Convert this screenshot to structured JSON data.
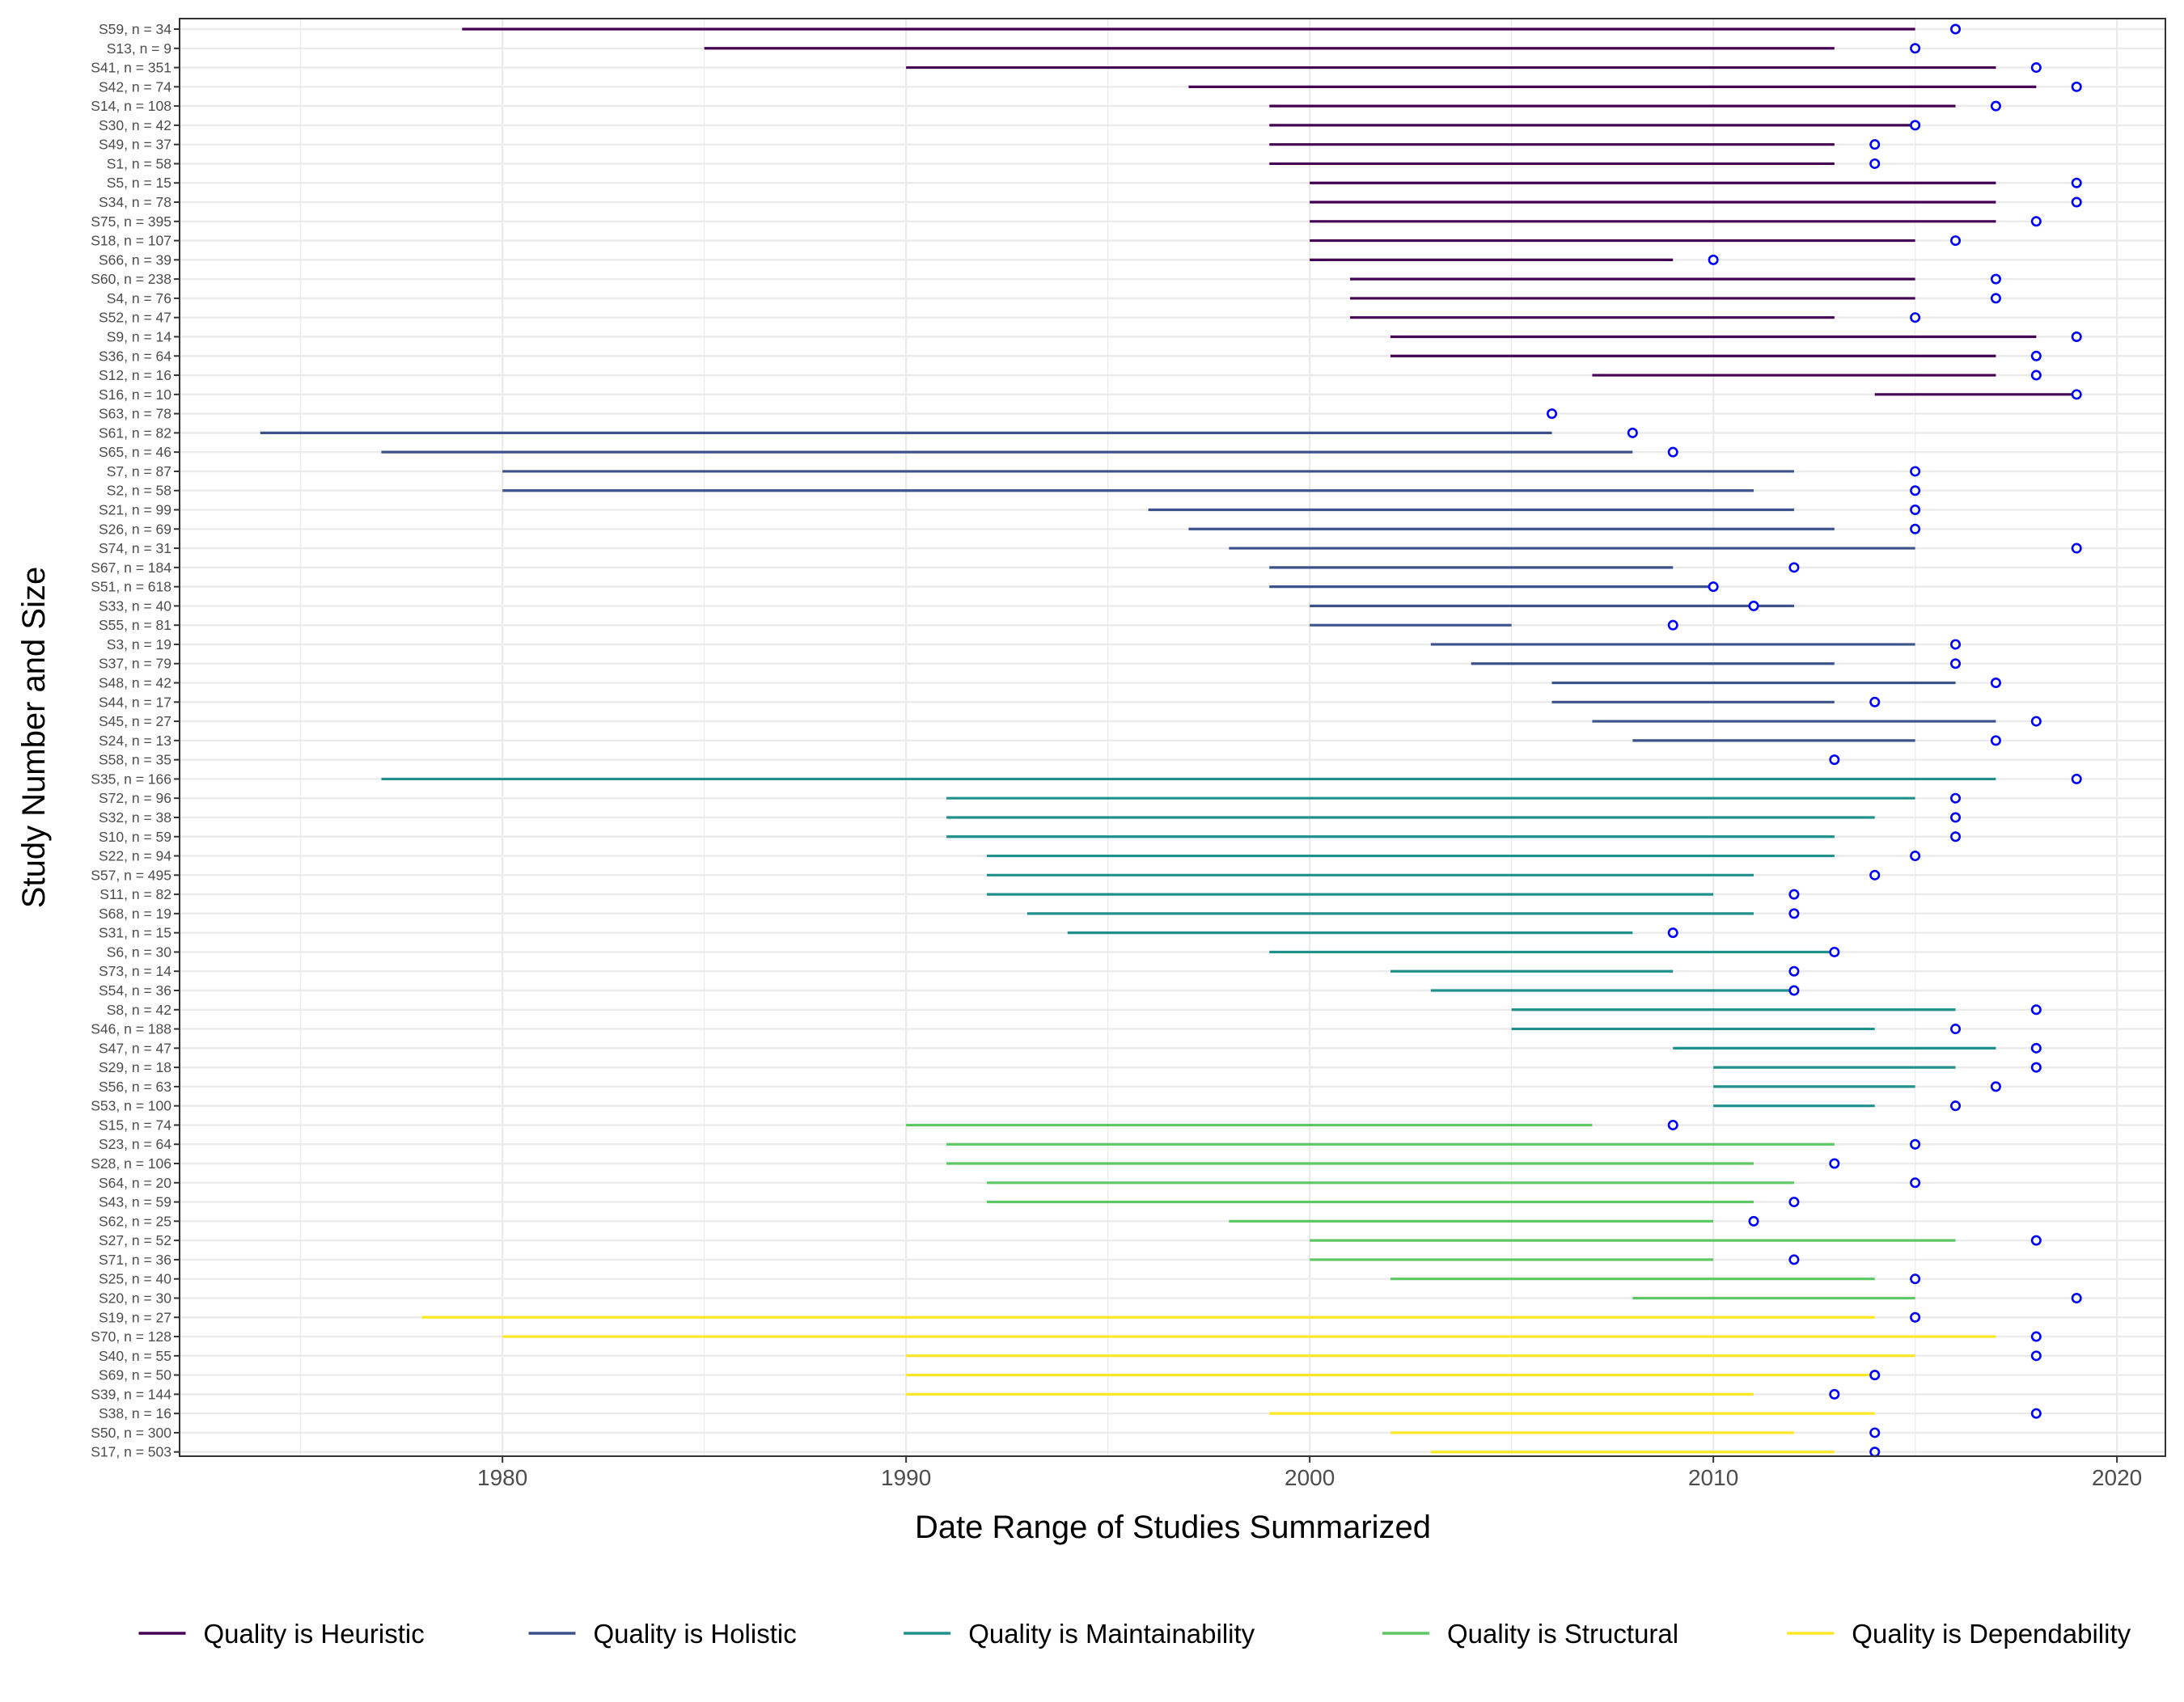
{
  "chart_data": {
    "type": "range-dot",
    "xlabel": "Date Range of Studies Summarized",
    "ylabel": "Study Number and Size",
    "xlim": [
      1972,
      2021.2
    ],
    "xticks": [
      1980,
      1990,
      2000,
      2010,
      2020
    ],
    "grid": true,
    "legend_position": "bottom",
    "point_color": "#0000ff",
    "groups": [
      {
        "name": "Quality is Heuristic",
        "color": "#440154"
      },
      {
        "name": "Quality is Holistic",
        "color": "#3b528b"
      },
      {
        "name": "Quality is Maintainability",
        "color": "#21908c"
      },
      {
        "name": "Quality is Structural",
        "color": "#5dc863"
      },
      {
        "name": "Quality is Dependability",
        "color": "#fde725"
      }
    ],
    "studies": [
      {
        "label": "S59, n = 34",
        "group": 0,
        "start": 1979,
        "end": 2015,
        "published": 2016
      },
      {
        "label": "S13, n = 9",
        "group": 0,
        "start": 1985,
        "end": 2013,
        "published": 2015
      },
      {
        "label": "S41, n = 351",
        "group": 0,
        "start": 1990,
        "end": 2017,
        "published": 2018
      },
      {
        "label": "S42, n = 74",
        "group": 0,
        "start": 1997,
        "end": 2018,
        "published": 2019
      },
      {
        "label": "S14, n = 108",
        "group": 0,
        "start": 1999,
        "end": 2016,
        "published": 2017
      },
      {
        "label": "S30, n = 42",
        "group": 0,
        "start": 1999,
        "end": 2015,
        "published": 2015
      },
      {
        "label": "S49, n = 37",
        "group": 0,
        "start": 1999,
        "end": 2013,
        "published": 2014
      },
      {
        "label": "S1, n = 58",
        "group": 0,
        "start": 1999,
        "end": 2013,
        "published": 2014
      },
      {
        "label": "S5, n = 15",
        "group": 0,
        "start": 2000,
        "end": 2017,
        "published": 2019
      },
      {
        "label": "S34, n = 78",
        "group": 0,
        "start": 2000,
        "end": 2017,
        "published": 2019
      },
      {
        "label": "S75, n = 395",
        "group": 0,
        "start": 2000,
        "end": 2017,
        "published": 2018
      },
      {
        "label": "S18, n = 107",
        "group": 0,
        "start": 2000,
        "end": 2015,
        "published": 2016
      },
      {
        "label": "S66, n = 39",
        "group": 0,
        "start": 2000,
        "end": 2009,
        "published": 2010
      },
      {
        "label": "S60, n = 238",
        "group": 0,
        "start": 2001,
        "end": 2015,
        "published": 2017
      },
      {
        "label": "S4, n = 76",
        "group": 0,
        "start": 2001,
        "end": 2015,
        "published": 2017
      },
      {
        "label": "S52, n = 47",
        "group": 0,
        "start": 2001,
        "end": 2013,
        "published": 2015
      },
      {
        "label": "S9, n = 14",
        "group": 0,
        "start": 2002,
        "end": 2018,
        "published": 2019
      },
      {
        "label": "S36, n = 64",
        "group": 0,
        "start": 2002,
        "end": 2017,
        "published": 2018
      },
      {
        "label": "S12, n = 16",
        "group": 0,
        "start": 2007,
        "end": 2017,
        "published": 2018
      },
      {
        "label": "S16, n = 10",
        "group": 0,
        "start": 2014,
        "end": 2019,
        "published": 2019
      },
      {
        "label": "S63, n = 78",
        "group": 1,
        "start": 2006,
        "end": 2006,
        "published": 2006
      },
      {
        "label": "S61, n = 82",
        "group": 1,
        "start": 1974,
        "end": 2006,
        "published": 2008
      },
      {
        "label": "S65, n = 46",
        "group": 1,
        "start": 1977,
        "end": 2008,
        "published": 2009
      },
      {
        "label": "S7, n = 87",
        "group": 1,
        "start": 1980,
        "end": 2012,
        "published": 2015
      },
      {
        "label": "S2, n = 58",
        "group": 1,
        "start": 1980,
        "end": 2011,
        "published": 2015
      },
      {
        "label": "S21, n = 99",
        "group": 1,
        "start": 1996,
        "end": 2012,
        "published": 2015
      },
      {
        "label": "S26, n = 69",
        "group": 1,
        "start": 1997,
        "end": 2013,
        "published": 2015
      },
      {
        "label": "S74, n = 31",
        "group": 1,
        "start": 1998,
        "end": 2015,
        "published": 2019
      },
      {
        "label": "S67, n = 184",
        "group": 1,
        "start": 1999,
        "end": 2009,
        "published": 2012
      },
      {
        "label": "S51, n = 618",
        "group": 1,
        "start": 1999,
        "end": 2010,
        "published": 2010
      },
      {
        "label": "S33, n = 40",
        "group": 1,
        "start": 2000,
        "end": 2012,
        "published": 2011
      },
      {
        "label": "S55, n = 81",
        "group": 1,
        "start": 2000,
        "end": 2005,
        "published": 2009
      },
      {
        "label": "S3, n = 19",
        "group": 1,
        "start": 2003,
        "end": 2015,
        "published": 2016
      },
      {
        "label": "S37, n = 79",
        "group": 1,
        "start": 2004,
        "end": 2013,
        "published": 2016
      },
      {
        "label": "S48, n = 42",
        "group": 1,
        "start": 2006,
        "end": 2016,
        "published": 2017
      },
      {
        "label": "S44, n = 17",
        "group": 1,
        "start": 2006,
        "end": 2013,
        "published": 2014
      },
      {
        "label": "S45, n = 27",
        "group": 1,
        "start": 2007,
        "end": 2017,
        "published": 2018
      },
      {
        "label": "S24, n = 13",
        "group": 1,
        "start": 2008,
        "end": 2015,
        "published": 2017
      },
      {
        "label": "S58, n = 35",
        "group": 1,
        "start": 2013,
        "end": 2013,
        "published": 2013
      },
      {
        "label": "S35, n = 166",
        "group": 2,
        "start": 1977,
        "end": 2017,
        "published": 2019
      },
      {
        "label": "S72, n = 96",
        "group": 2,
        "start": 1991,
        "end": 2015,
        "published": 2016
      },
      {
        "label": "S32, n = 38",
        "group": 2,
        "start": 1991,
        "end": 2014,
        "published": 2016
      },
      {
        "label": "S10, n = 59",
        "group": 2,
        "start": 1991,
        "end": 2013,
        "published": 2016
      },
      {
        "label": "S22, n = 94",
        "group": 2,
        "start": 1992,
        "end": 2013,
        "published": 2015
      },
      {
        "label": "S57, n = 495",
        "group": 2,
        "start": 1992,
        "end": 2011,
        "published": 2014
      },
      {
        "label": "S11, n = 82",
        "group": 2,
        "start": 1992,
        "end": 2010,
        "published": 2012
      },
      {
        "label": "S68, n = 19",
        "group": 2,
        "start": 1993,
        "end": 2011,
        "published": 2012
      },
      {
        "label": "S31, n = 15",
        "group": 2,
        "start": 1994,
        "end": 2008,
        "published": 2009
      },
      {
        "label": "S6, n = 30",
        "group": 2,
        "start": 1999,
        "end": 2013,
        "published": 2013
      },
      {
        "label": "S73, n = 14",
        "group": 2,
        "start": 2002,
        "end": 2009,
        "published": 2012
      },
      {
        "label": "S54, n = 36",
        "group": 2,
        "start": 2003,
        "end": 2012,
        "published": 2012
      },
      {
        "label": "S8, n = 42",
        "group": 2,
        "start": 2005,
        "end": 2016,
        "published": 2018
      },
      {
        "label": "S46, n = 188",
        "group": 2,
        "start": 2005,
        "end": 2014,
        "published": 2016
      },
      {
        "label": "S47, n = 47",
        "group": 2,
        "start": 2009,
        "end": 2017,
        "published": 2018
      },
      {
        "label": "S29, n = 18",
        "group": 2,
        "start": 2010,
        "end": 2016,
        "published": 2018
      },
      {
        "label": "S56, n = 63",
        "group": 2,
        "start": 2010,
        "end": 2015,
        "published": 2017
      },
      {
        "label": "S53, n = 100",
        "group": 2,
        "start": 2010,
        "end": 2014,
        "published": 2016
      },
      {
        "label": "S15, n = 74",
        "group": 3,
        "start": 1990,
        "end": 2007,
        "published": 2009
      },
      {
        "label": "S23, n = 64",
        "group": 3,
        "start": 1991,
        "end": 2013,
        "published": 2015
      },
      {
        "label": "S28, n = 106",
        "group": 3,
        "start": 1991,
        "end": 2011,
        "published": 2013
      },
      {
        "label": "S64, n = 20",
        "group": 3,
        "start": 1992,
        "end": 2012,
        "published": 2015
      },
      {
        "label": "S43, n = 59",
        "group": 3,
        "start": 1992,
        "end": 2011,
        "published": 2012
      },
      {
        "label": "S62, n = 25",
        "group": 3,
        "start": 1998,
        "end": 2010,
        "published": 2011
      },
      {
        "label": "S27, n = 52",
        "group": 3,
        "start": 2000,
        "end": 2016,
        "published": 2018
      },
      {
        "label": "S71, n = 36",
        "group": 3,
        "start": 2000,
        "end": 2010,
        "published": 2012
      },
      {
        "label": "S25, n = 40",
        "group": 3,
        "start": 2002,
        "end": 2014,
        "published": 2015
      },
      {
        "label": "S20, n = 30",
        "group": 3,
        "start": 2008,
        "end": 2015,
        "published": 2019
      },
      {
        "label": "S19, n = 27",
        "group": 4,
        "start": 1978,
        "end": 2014,
        "published": 2015
      },
      {
        "label": "S70, n = 128",
        "group": 4,
        "start": 1980,
        "end": 2017,
        "published": 2018
      },
      {
        "label": "S40, n = 55",
        "group": 4,
        "start": 1990,
        "end": 2015,
        "published": 2018
      },
      {
        "label": "S69, n = 50",
        "group": 4,
        "start": 1990,
        "end": 2014,
        "published": 2014
      },
      {
        "label": "S39, n = 144",
        "group": 4,
        "start": 1990,
        "end": 2011,
        "published": 2013
      },
      {
        "label": "S38, n = 16",
        "group": 4,
        "start": 1999,
        "end": 2014,
        "published": 2018
      },
      {
        "label": "S50, n = 300",
        "group": 4,
        "start": 2002,
        "end": 2012,
        "published": 2014
      },
      {
        "label": "S17, n = 503",
        "group": 4,
        "start": 2003,
        "end": 2013,
        "published": 2014
      }
    ]
  }
}
